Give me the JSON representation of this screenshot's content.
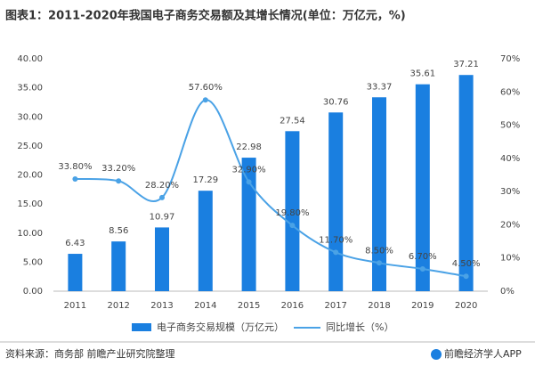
{
  "chart_data": {
    "type": "bar_line",
    "title": "图表1：2011-2020年我国电子商务交易额及其增长情况(单位：万亿元，%)",
    "categories": [
      "2011",
      "2012",
      "2013",
      "2014",
      "2015",
      "2016",
      "2017",
      "2018",
      "2019",
      "2020"
    ],
    "series": [
      {
        "name": "电子商务交易规模（万亿元）",
        "type": "bar",
        "color": "#1a7fe0",
        "values": [
          6.43,
          8.56,
          10.97,
          17.29,
          22.98,
          27.54,
          30.76,
          33.37,
          35.61,
          37.21
        ]
      },
      {
        "name": "同比增长（%）",
        "type": "line",
        "axis": "y2",
        "color": "#4aa2e6",
        "values": [
          33.8,
          33.2,
          28.2,
          57.6,
          32.9,
          19.8,
          11.7,
          8.5,
          6.7,
          4.5
        ],
        "value_labels": [
          "33.80%",
          "33.20%",
          "28.20%",
          "57.60%",
          "32.90%",
          "19.80%",
          "11.70%",
          "8.50%",
          "6.70%",
          "4.50%"
        ]
      }
    ],
    "ylim": [
      0,
      40
    ],
    "yticks": [
      {
        "value": 0,
        "label": "0.00"
      },
      {
        "value": 5,
        "label": "5.00"
      },
      {
        "value": 10,
        "label": "10.00"
      },
      {
        "value": 15,
        "label": "15.00"
      },
      {
        "value": 20,
        "label": "20.00"
      },
      {
        "value": 25,
        "label": "25.00"
      },
      {
        "value": 30,
        "label": "30.00"
      },
      {
        "value": 35,
        "label": "35.00"
      },
      {
        "value": 40,
        "label": "40.00"
      }
    ],
    "y2lim": [
      0,
      70
    ],
    "y2ticks": [
      {
        "value": 0,
        "label": "0%"
      },
      {
        "value": 10,
        "label": "10%"
      },
      {
        "value": 20,
        "label": "20%"
      },
      {
        "value": 30,
        "label": "30%"
      },
      {
        "value": 40,
        "label": "40%"
      },
      {
        "value": 50,
        "label": "50%"
      },
      {
        "value": 60,
        "label": "60%"
      },
      {
        "value": 70,
        "label": "70%"
      }
    ],
    "source": "资料来源：商务部 前瞻产业研究院整理",
    "brand": "前瞻经济学人APP"
  }
}
